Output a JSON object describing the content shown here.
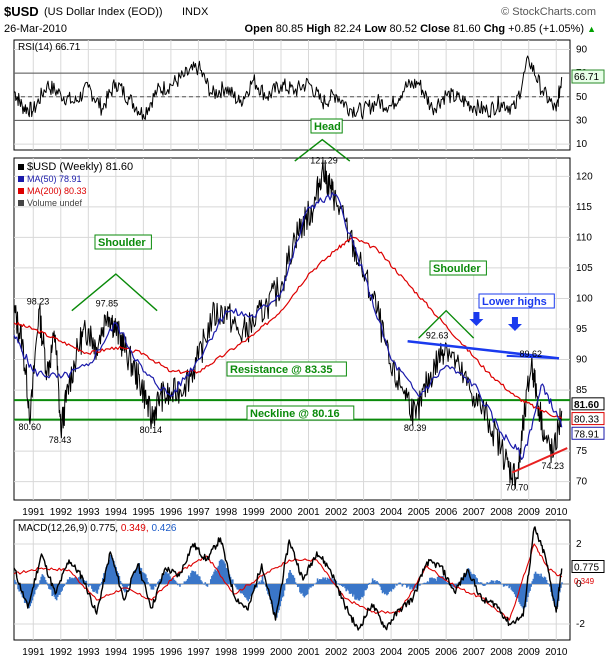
{
  "header": {
    "symbol": "$USD",
    "description": "(US Dollar Index (EOD))",
    "exchange": "INDX",
    "brand": "© StockCharts.com",
    "date": "26-Mar-2010",
    "open_label": "Open",
    "open_value": "80.85",
    "high_label": "High",
    "high_value": "82.24",
    "low_label": "Low",
    "low_value": "80.52",
    "close_label": "Close",
    "close_value": "81.60",
    "chg_label": "Chg",
    "chg_value": "+0.85 (+1.05%)",
    "chg_arrow": "▲"
  },
  "chart_data": [
    {
      "type": "line",
      "name": "rsi-panel",
      "legend": "RSI(14) 66.71",
      "current_label": "66.71",
      "ylim": [
        5,
        98
      ],
      "yticks": [
        10,
        30,
        50,
        70,
        90
      ],
      "levels": [
        30,
        50,
        70
      ],
      "series": [
        {
          "x": [
            1990.3,
            1990.6,
            1991,
            1991.5,
            1992,
            1992.5,
            1993,
            1993.5,
            1994,
            1994.5,
            1995,
            1995.5,
            1996,
            1996.5,
            1997,
            1997.5,
            1998,
            1998.5,
            1999,
            1999.5,
            2000,
            2000.5,
            2001,
            2001.5,
            2002,
            2002.5,
            2003,
            2003.5,
            2004,
            2004.5,
            2005,
            2005.5,
            2006,
            2006.5,
            2007,
            2007.5,
            2008,
            2008.5,
            2009,
            2009.5,
            2010,
            2010.2
          ],
          "y": [
            55,
            42,
            38,
            60,
            52,
            45,
            58,
            40,
            62,
            48,
            35,
            55,
            60,
            68,
            75,
            52,
            58,
            45,
            64,
            50,
            60,
            55,
            62,
            45,
            52,
            40,
            38,
            46,
            42,
            58,
            62,
            40,
            52,
            48,
            42,
            38,
            45,
            40,
            82,
            55,
            38,
            66.71
          ]
        }
      ]
    },
    {
      "type": "line",
      "name": "price-panel",
      "legend": [
        "$USD (Weekly) 81.60",
        "MA(50) 78.91",
        "MA(200) 80.33",
        "Volume undef"
      ],
      "ylim": [
        67,
        123
      ],
      "yticks": [
        70,
        75,
        80,
        85,
        90,
        95,
        100,
        105,
        110,
        115,
        120
      ],
      "x_ticks": [
        "1991",
        "1992",
        "1993",
        "1994",
        "1995",
        "1996",
        "1997",
        "1998",
        "1999",
        "2000",
        "2001",
        "2002",
        "2003",
        "2004",
        "2005",
        "2006",
        "2007",
        "2008",
        "2009",
        "2010"
      ],
      "xlim": [
        1990.3,
        2010.5
      ],
      "series": [
        {
          "name": "$USD (Weekly)",
          "color": "#000000",
          "x": [
            1990.3,
            1990.6,
            1990.9,
            1991.2,
            1991.5,
            1991.8,
            1992.0,
            1992.3,
            1992.7,
            1993.0,
            1993.3,
            1993.7,
            1994.0,
            1994.3,
            1994.7,
            1995.0,
            1995.3,
            1995.6,
            1996.0,
            1996.5,
            1997.0,
            1997.5,
            1998.0,
            1998.5,
            1999.0,
            1999.5,
            2000.0,
            2000.5,
            2000.9,
            2001.2,
            2001.5,
            2001.8,
            2002.0,
            2002.5,
            2003.0,
            2003.5,
            2004.0,
            2004.5,
            2004.9,
            2005.3,
            2005.7,
            2006.0,
            2006.5,
            2007.0,
            2007.5,
            2008.0,
            2008.3,
            2008.6,
            2008.8,
            2009.1,
            2009.3,
            2009.6,
            2009.9,
            2010.2
          ],
          "y": [
            98,
            93,
            80.6,
            98.23,
            88,
            94,
            78.43,
            86,
            93,
            95,
            92,
            97.85,
            95,
            92,
            88,
            85,
            80.14,
            84,
            84,
            86,
            90,
            97,
            98,
            94,
            96,
            99,
            102,
            110,
            113,
            115,
            121.29,
            118,
            116,
            110,
            104,
            98,
            88,
            85,
            80.39,
            86,
            90,
            92.63,
            88,
            84,
            80.5,
            75.5,
            72,
            70.7,
            79,
            89.62,
            84,
            77,
            74.23,
            81.6
          ]
        },
        {
          "name": "MA(50)",
          "color": "#1a1aaa",
          "x": [
            1990.3,
            1991,
            1992,
            1993,
            1994,
            1995,
            1996,
            1997,
            1998,
            1999,
            2000,
            2001,
            2002,
            2003,
            2004,
            2005,
            2006,
            2007,
            2008,
            2008.8,
            2009.5,
            2010.2
          ],
          "y": [
            94,
            88,
            87,
            89,
            96,
            88,
            84,
            90,
            98,
            97,
            101,
            115,
            117,
            104,
            90,
            84,
            89,
            86,
            78,
            74,
            86,
            78.91
          ]
        },
        {
          "name": "MA(200)",
          "color": "#dd0000",
          "x": [
            1990.3,
            1991,
            1992,
            1993,
            1994,
            1995,
            1996,
            1997,
            1998,
            1999,
            2000,
            2001,
            2002,
            2002.6,
            2003.5,
            2004.5,
            2005.5,
            2006.5,
            2007.5,
            2008.5,
            2009.3,
            2010.2
          ],
          "y": [
            96,
            95,
            93,
            91,
            92,
            91,
            88,
            88,
            91,
            94,
            98,
            104,
            108,
            110,
            108,
            103,
            98,
            93,
            88,
            84,
            82,
            80.33
          ]
        }
      ],
      "annotations": [
        {
          "text": "98.23",
          "x": 1991.2,
          "y": 98.23
        },
        {
          "text": "97.85",
          "x": 1993.7,
          "y": 97.85
        },
        {
          "text": "80.60",
          "x": 1990.9,
          "y": 80.6
        },
        {
          "text": "78.43",
          "x": 1992.0,
          "y": 78.43
        },
        {
          "text": "80.14",
          "x": 1995.3,
          "y": 80.14
        },
        {
          "text": "121.29",
          "x": 2001.5,
          "y": 121.29
        },
        {
          "text": "80.39",
          "x": 2004.9,
          "y": 80.39
        },
        {
          "text": "92.63",
          "x": 2005.7,
          "y": 92.63
        },
        {
          "text": "89.62",
          "x": 2009.1,
          "y": 89.62
        },
        {
          "text": "70.70",
          "x": 2008.6,
          "y": 70.7
        },
        {
          "text": "74.23",
          "x": 2009.9,
          "y": 74.23
        }
      ],
      "callouts": {
        "shoulder_left": "Shoulder",
        "head": "Head",
        "shoulder_right": "Shoulder",
        "lower_highs": "Lower highs",
        "resistance": "Resistance @ 83.35",
        "neckline": "Neckline @ 80.16"
      },
      "levels": [
        {
          "name": "Resistance",
          "y": 83.35
        },
        {
          "name": "Neckline",
          "y": 80.16
        }
      ],
      "right_labels": [
        "81.60",
        "80.33",
        "78.91"
      ]
    },
    {
      "type": "line",
      "name": "macd-panel",
      "legend_prefix": "MACD(12,26,9)",
      "legend_values": [
        "0.775",
        "0.349",
        "0.426"
      ],
      "current_labels": [
        "0.775",
        "0.349"
      ],
      "ylim": [
        -2.8,
        3.2
      ],
      "yticks": [
        -2,
        0,
        2
      ],
      "series": [
        {
          "name": "MACD",
          "color": "#000000",
          "x": [
            1990.3,
            1990.8,
            1991.3,
            1991.8,
            1992.3,
            1992.8,
            1993.3,
            1993.8,
            1994.3,
            1994.8,
            1995.3,
            1995.8,
            1996.3,
            1996.8,
            1997.3,
            1997.8,
            1998.3,
            1998.8,
            1999.3,
            1999.8,
            2000.3,
            2000.8,
            2001.3,
            2001.8,
            2002.3,
            2002.8,
            2003.3,
            2003.8,
            2004.3,
            2004.8,
            2005.3,
            2005.8,
            2006.3,
            2006.8,
            2007.3,
            2007.8,
            2008.3,
            2008.8,
            2009.2,
            2009.6,
            2010.0,
            2010.2
          ],
          "y": [
            0.8,
            -1.2,
            1.5,
            -0.5,
            1.2,
            0.3,
            -1.5,
            1.6,
            -0.8,
            1.0,
            -1.2,
            0.8,
            0.4,
            2.0,
            1.2,
            2.3,
            -0.6,
            -1.3,
            1.0,
            -1.8,
            2.2,
            0.2,
            1.6,
            0.7,
            -1.0,
            -2.3,
            -1.0,
            -2.2,
            -1.3,
            -0.7,
            1.1,
            0.9,
            -0.4,
            0.7,
            -0.8,
            -1.0,
            -2.0,
            -1.6,
            2.8,
            1.4,
            -1.4,
            0.775
          ]
        },
        {
          "name": "Signal",
          "color": "#dd0000",
          "x": [
            1990.3,
            1991.3,
            1992.3,
            1993.3,
            1994.3,
            1995.3,
            1996.3,
            1997.3,
            1998.3,
            1999.3,
            2000.3,
            2001.3,
            2002.3,
            2003.3,
            2004.3,
            2005.3,
            2006.3,
            2007.3,
            2008.3,
            2009.2,
            2009.7,
            2010.2
          ],
          "y": [
            0.5,
            0.8,
            0.7,
            -0.8,
            -0.2,
            -0.8,
            0.6,
            1.4,
            -0.5,
            0.4,
            1.2,
            1.2,
            -0.7,
            -1.4,
            -1.4,
            0.9,
            -0.1,
            -0.7,
            -1.8,
            2.0,
            0.8,
            0.349
          ]
        }
      ]
    }
  ]
}
